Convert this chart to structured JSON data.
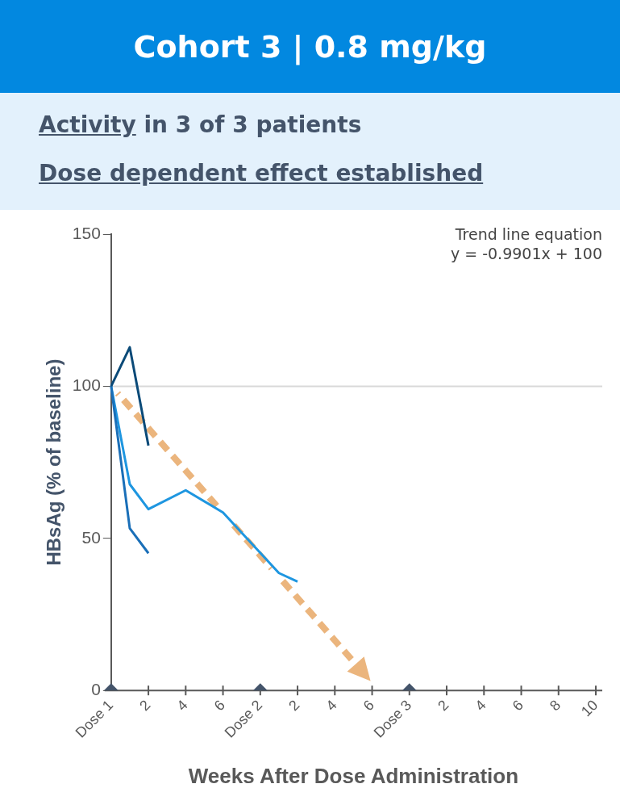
{
  "chart_data": {
    "type": "line",
    "title": "Cohort 3 | 0.8 mg/kg",
    "subtitle": "Activity in 3 of 3 patients\nDose dependent effect established",
    "xlabel": "Weeks After Dose Administration",
    "ylabel": "HBsAg (% of baseline)",
    "annotations": [
      "Trend line equation\ny = -0.9901x + 100"
    ],
    "categories": [
      "Dose 1",
      null,
      "2",
      null,
      "4",
      null,
      "6",
      null,
      "Dose 2",
      null,
      "2",
      null,
      "4",
      null,
      "6",
      null,
      "Dose 3",
      null,
      "2",
      null,
      "4",
      null,
      "6",
      null,
      "8",
      null,
      "10"
    ],
    "ylim": [
      0,
      150
    ],
    "yticks": [
      0,
      50,
      100,
      150
    ],
    "grid": false,
    "legend": false,
    "marker": "none",
    "line_style": "solid",
    "ref_lines": [
      {
        "axis": "y",
        "value": 100,
        "color": "#d9d9d9"
      }
    ],
    "series": [
      {
        "color": "#0b4a78",
        "values": [
          100,
          112.8,
          80.5,
          null,
          null,
          null,
          null,
          null,
          null,
          null,
          null,
          null,
          null,
          null,
          null,
          null,
          null,
          null,
          null,
          null,
          null,
          null,
          null,
          null,
          null,
          null,
          null
        ]
      },
      {
        "color": "#1a6fb8",
        "values": [
          100,
          53.3,
          45.1,
          null,
          null,
          null,
          null,
          null,
          null,
          null,
          null,
          null,
          null,
          null,
          null,
          null,
          null,
          null,
          null,
          null,
          null,
          null,
          null,
          null,
          null,
          null,
          null
        ]
      },
      {
        "color": "#1e96e0",
        "values": [
          100,
          67.8,
          59.6,
          null,
          65.8,
          null,
          58.5,
          null,
          null,
          38.6,
          35.8,
          null,
          null,
          null,
          null,
          null,
          null,
          null,
          null,
          null,
          null,
          null,
          null,
          null,
          null,
          null,
          null
        ]
      },
      {
        "type": "scatter",
        "color": "#44546a",
        "marker": "diamond",
        "values": [
          0,
          null,
          null,
          null,
          null,
          null,
          null,
          null,
          0,
          null,
          null,
          null,
          null,
          null,
          null,
          null,
          0,
          null,
          null,
          null,
          null,
          null,
          null,
          null,
          null,
          null,
          null
        ]
      }
    ]
  }
}
